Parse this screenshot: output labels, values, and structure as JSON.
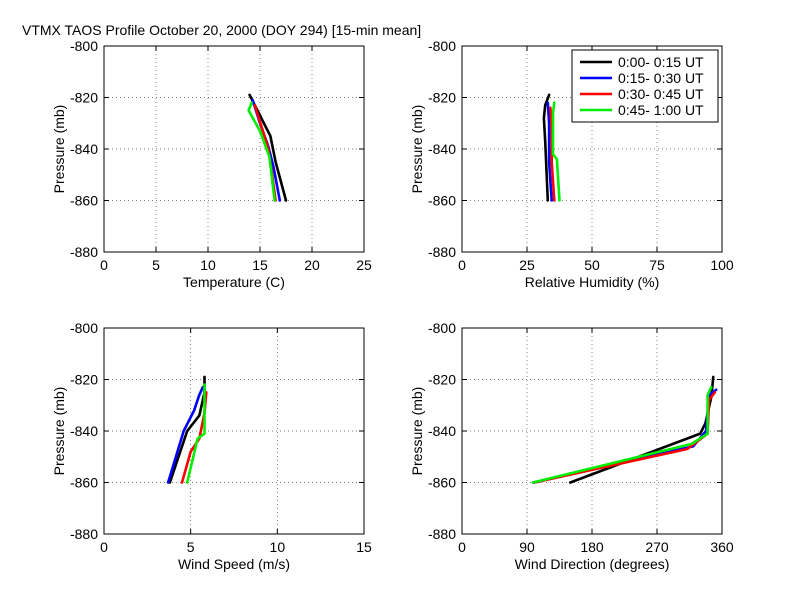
{
  "figure": {
    "title": "VTMX TAOS Profile   October 20, 2000 (DOY 294) [15-min mean]"
  },
  "legend": {
    "entries": [
      "0:00- 0:15 UT",
      "0:15- 0:30 UT",
      "0:30- 0:45 UT",
      "0:45- 1:00 UT"
    ],
    "colors": [
      "#000000",
      "#0000ff",
      "#ff0000",
      "#00ee00"
    ],
    "placement": "top-right of relative humidity panel"
  },
  "chart_data": [
    {
      "type": "line",
      "xlabel": "Temperature (C)",
      "ylabel": "Pressure (mb)",
      "xlim": [
        0,
        25
      ],
      "ylim": [
        -880,
        -800
      ],
      "xticks": [
        0,
        5,
        10,
        15,
        20,
        25
      ],
      "xtick_labels": [
        "0",
        "5",
        "10",
        "15",
        "20",
        "25"
      ],
      "yticks": [
        -800,
        -820,
        -840,
        -860,
        -880
      ],
      "ytick_labels": [
        "-800",
        "-820",
        "-840",
        "-860",
        "-880"
      ],
      "grid": true,
      "series": [
        {
          "name": "0:00- 0:15 UT",
          "points": [
            [
              14.0,
              -819
            ],
            [
              15.0,
              -827
            ],
            [
              16.0,
              -835
            ],
            [
              16.5,
              -845
            ],
            [
              17.5,
              -860
            ]
          ]
        },
        {
          "name": "0:15- 0:30 UT",
          "points": [
            [
              14.3,
              -821
            ],
            [
              15.0,
              -830
            ],
            [
              15.8,
              -839
            ],
            [
              16.3,
              -847
            ],
            [
              16.9,
              -860
            ]
          ]
        },
        {
          "name": "0:30- 0:45 UT",
          "points": [
            [
              14.5,
              -823
            ],
            [
              15.2,
              -832
            ],
            [
              15.8,
              -840
            ],
            [
              16.1,
              -848
            ],
            [
              16.5,
              -860
            ]
          ]
        },
        {
          "name": "0:45- 1:00 UT",
          "points": [
            [
              14.2,
              -822
            ],
            [
              13.9,
              -825
            ],
            [
              15.0,
              -833
            ],
            [
              15.9,
              -843
            ],
            [
              16.4,
              -860
            ]
          ]
        }
      ]
    },
    {
      "type": "line",
      "xlabel": "Relative Humidity (%)",
      "ylabel": "Pressure (mb)",
      "xlim": [
        0,
        100
      ],
      "ylim": [
        -880,
        -800
      ],
      "xticks": [
        0,
        25,
        50,
        75,
        100
      ],
      "xtick_labels": [
        "0",
        "25",
        "50",
        "75",
        "100"
      ],
      "yticks": [
        -800,
        -820,
        -840,
        -860,
        -880
      ],
      "ytick_labels": [
        "-800",
        "-820",
        "-840",
        "-860",
        "-880"
      ],
      "grid": true,
      "series": [
        {
          "name": "0:00- 0:15 UT",
          "points": [
            [
              33.5,
              -819
            ],
            [
              32.0,
              -823
            ],
            [
              31.5,
              -828
            ],
            [
              32.0,
              -837
            ],
            [
              33.0,
              -860
            ]
          ]
        },
        {
          "name": "0:15- 0:30 UT",
          "points": [
            [
              33.0,
              -822
            ],
            [
              33.5,
              -830
            ],
            [
              33.5,
              -845
            ],
            [
              34.5,
              -860
            ]
          ]
        },
        {
          "name": "0:30- 0:45 UT",
          "points": [
            [
              34.0,
              -824
            ],
            [
              34.5,
              -832
            ],
            [
              34.5,
              -845
            ],
            [
              35.5,
              -860
            ]
          ]
        },
        {
          "name": "0:45- 1:00 UT",
          "points": [
            [
              35.5,
              -822
            ],
            [
              35.0,
              -826
            ],
            [
              35.0,
              -842
            ],
            [
              36.5,
              -844
            ],
            [
              37.5,
              -860
            ]
          ]
        }
      ]
    },
    {
      "type": "line",
      "xlabel": "Wind Speed (m/s)",
      "ylabel": "Pressure (mb)",
      "xlim": [
        0,
        15
      ],
      "ylim": [
        -880,
        -800
      ],
      "xticks": [
        0,
        5,
        10,
        15
      ],
      "xtick_labels": [
        "0",
        "5",
        "10",
        "15"
      ],
      "yticks": [
        -800,
        -820,
        -840,
        -860,
        -880
      ],
      "ytick_labels": [
        "-800",
        "-820",
        "-840",
        "-860",
        "-880"
      ],
      "grid": true,
      "series": [
        {
          "name": "0:00- 0:15 UT",
          "points": [
            [
              5.8,
              -819
            ],
            [
              5.8,
              -825
            ],
            [
              5.5,
              -834
            ],
            [
              4.8,
              -840
            ],
            [
              3.8,
              -860
            ]
          ]
        },
        {
          "name": "0:15- 0:30 UT",
          "points": [
            [
              5.7,
              -823
            ],
            [
              5.5,
              -826
            ],
            [
              5.2,
              -832
            ],
            [
              4.6,
              -840
            ],
            [
              3.7,
              -860
            ]
          ]
        },
        {
          "name": "0:30- 0:45 UT",
          "points": [
            [
              5.9,
              -825
            ],
            [
              5.8,
              -833
            ],
            [
              5.5,
              -843
            ],
            [
              5.0,
              -848
            ],
            [
              4.5,
              -860
            ]
          ]
        },
        {
          "name": "0:45- 1:00 UT",
          "points": [
            [
              5.8,
              -822
            ],
            [
              5.8,
              -833
            ],
            [
              5.8,
              -841
            ],
            [
              5.4,
              -843
            ],
            [
              4.8,
              -860
            ]
          ]
        }
      ]
    },
    {
      "type": "line",
      "xlabel": "Wind Direction (degrees)",
      "ylabel": "Pressure (mb)",
      "xlim": [
        0,
        360
      ],
      "ylim": [
        -880,
        -800
      ],
      "xticks": [
        0,
        90,
        180,
        270,
        360
      ],
      "xtick_labels": [
        "0",
        "90",
        "180",
        "270",
        "360"
      ],
      "yticks": [
        -800,
        -820,
        -840,
        -860,
        -880
      ],
      "ytick_labels": [
        "-800",
        "-820",
        "-840",
        "-860",
        "-880"
      ],
      "grid": true,
      "series": [
        {
          "name": "0:00- 0:15 UT",
          "points": [
            [
              348,
              -819
            ],
            [
              345,
              -827
            ],
            [
              337,
              -837
            ],
            [
              330,
              -841
            ],
            [
              150,
              -860
            ]
          ]
        },
        {
          "name": "0:15- 0:30 UT",
          "points": [
            [
              352,
              -824
            ],
            [
              342,
              -826
            ],
            [
              338,
              -840
            ],
            [
              320,
              -846
            ],
            [
              100,
              -860
            ]
          ]
        },
        {
          "name": "0:30- 0:45 UT",
          "points": [
            [
              350,
              -825
            ],
            [
              342,
              -828
            ],
            [
              340,
              -841
            ],
            [
              312,
              -847
            ],
            [
              100,
              -860
            ]
          ]
        },
        {
          "name": "0:45- 1:00 UT",
          "points": [
            [
              345,
              -823
            ],
            [
              340,
              -826
            ],
            [
              340,
              -841
            ],
            [
              318,
              -845
            ],
            [
              98,
              -860
            ]
          ]
        }
      ]
    }
  ]
}
